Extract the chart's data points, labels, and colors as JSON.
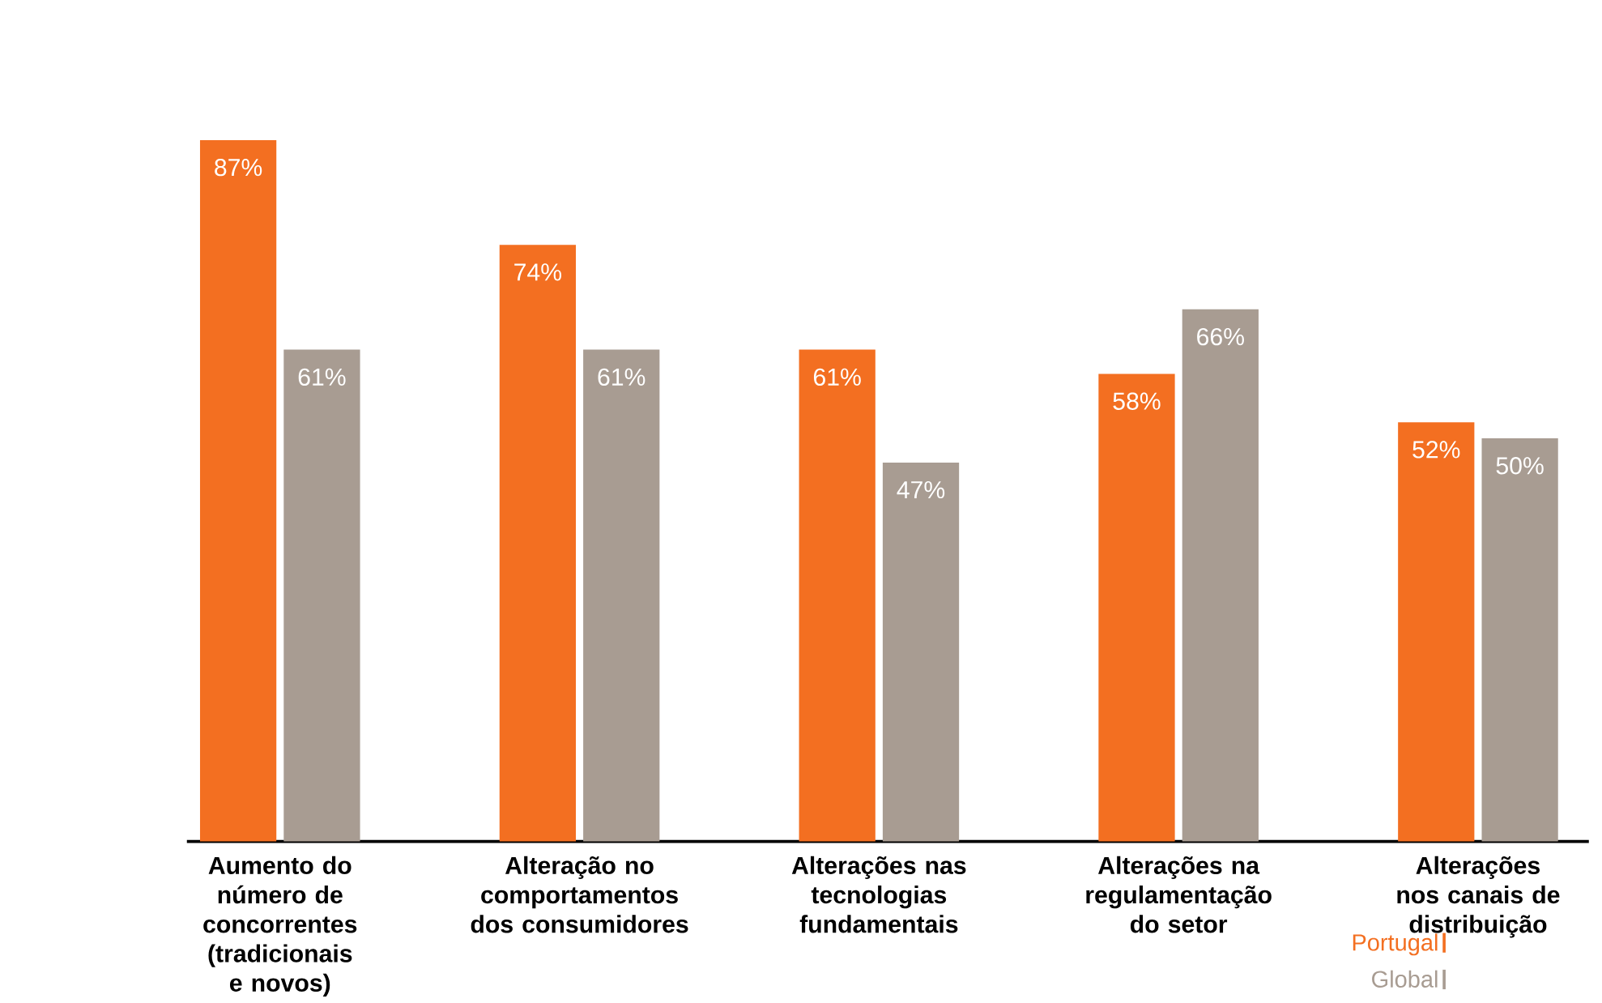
{
  "chart_data": {
    "type": "bar",
    "categories": [
      "Aumento do número de concorrentes (tradicionais e novos)",
      "Alteração no comportamentos dos consumidores",
      "Alterações nas tecnologias fundamentais",
      "Alterações na regulamentação do setor",
      "Alterações nos canais de distribuição"
    ],
    "series": [
      {
        "name": "Portugal",
        "color": "#f36f21",
        "values": [
          87,
          74,
          61,
          58,
          52
        ],
        "value_labels": [
          "87%",
          "74%",
          "61%",
          "58%",
          "52%"
        ]
      },
      {
        "name": "Global",
        "color": "#a89c92",
        "values": [
          61,
          61,
          47,
          66,
          50
        ],
        "value_labels": [
          "61%",
          "61%",
          "47%",
          "66%",
          "50%"
        ]
      }
    ],
    "legend": "bottom right"
  }
}
